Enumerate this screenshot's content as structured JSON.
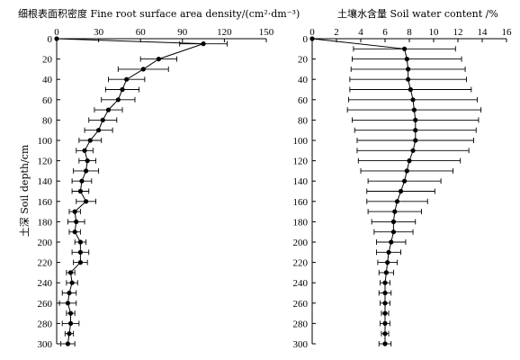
{
  "chart_data": [
    {
      "type": "line",
      "title": "细根表面积密度 Fine root surface area density/(cm²·dm⁻³)",
      "xlabel": "细根表面积密度 Fine root surface area density/(cm²·dm⁻³)",
      "ylabel": "土深 Soil depth/cm",
      "xlim": [
        0,
        150
      ],
      "ylim": [
        300,
        0
      ],
      "x_ticks": [
        0,
        30,
        60,
        90,
        120,
        150
      ],
      "y_ticks": [
        0,
        20,
        40,
        60,
        80,
        100,
        120,
        140,
        160,
        180,
        200,
        220,
        240,
        260,
        280,
        300
      ],
      "x_axis_position": "top",
      "series": [
        {
          "depth": [
            0,
            5,
            20,
            30,
            40,
            50,
            60,
            70,
            80,
            90,
            100,
            110,
            120,
            130,
            140,
            150,
            160,
            170,
            180,
            190,
            200,
            210,
            220,
            230,
            240,
            250,
            260,
            270,
            280,
            290,
            300
          ],
          "values": [
            0,
            105,
            73,
            62,
            50,
            47,
            44,
            37,
            33,
            30,
            24,
            20,
            22,
            21,
            18,
            17,
            21,
            13,
            14,
            13,
            17,
            17,
            17,
            10,
            11,
            9,
            8,
            10,
            10,
            9,
            8
          ],
          "error": [
            0,
            17,
            13,
            18,
            13,
            12,
            12,
            10,
            10,
            10,
            8,
            6,
            6,
            9,
            7,
            6,
            7,
            4,
            6,
            4,
            4,
            6,
            5,
            3,
            4,
            5,
            6,
            3,
            6,
            3,
            5
          ]
        }
      ]
    },
    {
      "type": "line",
      "title": "土壤水含量 Soil water content /%",
      "xlabel": "土壤水含量 Soil water content /%",
      "ylabel": "",
      "xlim": [
        0,
        16
      ],
      "ylim": [
        300,
        0
      ],
      "x_ticks": [
        0,
        2,
        4,
        6,
        8,
        10,
        12,
        14,
        16
      ],
      "y_ticks": [
        0,
        20,
        40,
        60,
        80,
        100,
        120,
        140,
        160,
        180,
        200,
        220,
        240,
        260,
        280,
        300
      ],
      "x_axis_position": "top",
      "series": [
        {
          "depth": [
            0,
            10,
            20,
            30,
            40,
            50,
            60,
            70,
            80,
            90,
            100,
            110,
            120,
            130,
            140,
            150,
            160,
            170,
            180,
            190,
            200,
            210,
            220,
            230,
            240,
            250,
            260,
            270,
            280,
            290,
            300
          ],
          "values": [
            0,
            7.6,
            7.8,
            7.9,
            7.9,
            8.1,
            8.3,
            8.4,
            8.5,
            8.5,
            8.5,
            8.3,
            8.0,
            7.8,
            7.6,
            7.3,
            7.0,
            6.8,
            6.7,
            6.7,
            6.5,
            6.3,
            6.2,
            6.1,
            6.0,
            6.0,
            6.0,
            6.0,
            6.0,
            6.0,
            6.0
          ],
          "error": [
            0,
            4.2,
            4.5,
            4.7,
            4.8,
            5.0,
            5.3,
            5.5,
            5.2,
            5.0,
            4.8,
            4.6,
            4.2,
            3.8,
            3.0,
            2.8,
            2.5,
            2.2,
            1.8,
            1.6,
            1.2,
            1.0,
            0.8,
            0.6,
            0.4,
            0.5,
            0.4,
            0.3,
            0.4,
            0.3,
            0.5
          ]
        }
      ]
    }
  ]
}
